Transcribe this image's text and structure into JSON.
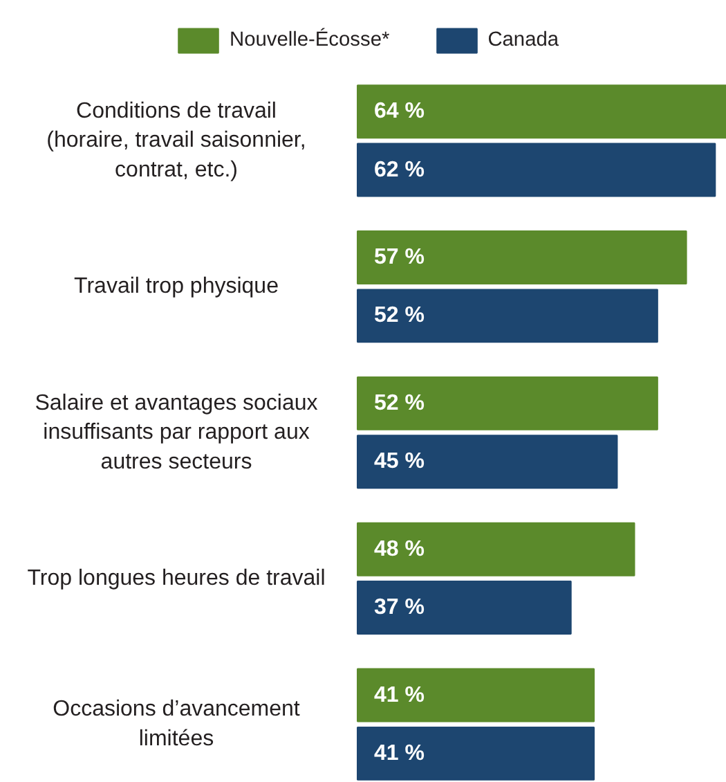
{
  "chart_data": {
    "type": "bar",
    "orientation": "horizontal",
    "categories": [
      "Conditions de travail\n(horaire, travail saisonnier,\ncontrat, etc.)",
      "Travail trop physique",
      "Salaire et avantages sociaux\ninsuffisants par rapport aux\nautres secteurs",
      "Trop longues heures de travail",
      "Occasions d’avancement\nlimitées"
    ],
    "series": [
      {
        "name": "Nouvelle-Écosse*",
        "color": "#5b8a2b",
        "values": [
          64,
          57,
          52,
          48,
          41
        ],
        "value_labels": [
          "64 %",
          "57 %",
          "52 %",
          "48 %",
          "41 %"
        ]
      },
      {
        "name": "Canada",
        "color": "#1d4670",
        "values": [
          62,
          52,
          45,
          37,
          41
        ],
        "value_labels": [
          "62 %",
          "52 %",
          "45 %",
          "37 %",
          "41 %"
        ]
      }
    ],
    "xlim": [
      0,
      64
    ],
    "tick_labels": "y",
    "grid": false,
    "legend": "top"
  }
}
